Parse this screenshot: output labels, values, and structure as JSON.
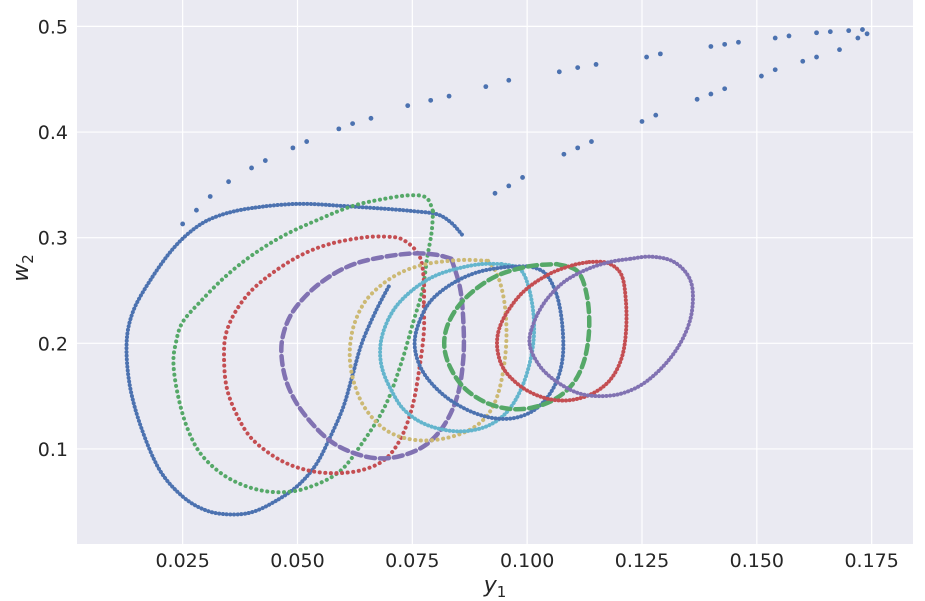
{
  "chart_data": {
    "type": "scatter",
    "title": "",
    "xlabel": "y",
    "xlabel_sub": "1",
    "ylabel": "w",
    "ylabel_sub": "2",
    "xlim": [
      0.002,
      0.184
    ],
    "ylim": [
      0.01,
      0.525
    ],
    "xticks": [
      0.025,
      0.05,
      0.075,
      0.1,
      0.125,
      0.15,
      0.175
    ],
    "xtick_labels": [
      "0.025",
      "0.050",
      "0.075",
      "0.100",
      "0.125",
      "0.150",
      "0.175"
    ],
    "yticks": [
      0.1,
      0.2,
      0.3,
      0.4,
      0.5
    ],
    "ytick_labels": [
      "0.1",
      "0.2",
      "0.3",
      "0.4",
      "0.5"
    ],
    "grid": true,
    "background": "#eaeaf2",
    "series": [
      {
        "color": "#4c72b0",
        "style": "curve",
        "points": [
          [
            0.0858,
            0.303
          ],
          [
            0.0835,
            0.314
          ],
          [
            0.0805,
            0.322
          ],
          [
            0.0755,
            0.325
          ],
          [
            0.07,
            0.327
          ],
          [
            0.06,
            0.33
          ],
          [
            0.05,
            0.332
          ],
          [
            0.04,
            0.328
          ],
          [
            0.033,
            0.321
          ],
          [
            0.028,
            0.31
          ],
          [
            0.023,
            0.29
          ],
          [
            0.018,
            0.26
          ],
          [
            0.0142,
            0.23
          ],
          [
            0.0128,
            0.2
          ],
          [
            0.0135,
            0.16
          ],
          [
            0.016,
            0.12
          ],
          [
            0.02,
            0.08
          ],
          [
            0.025,
            0.055
          ],
          [
            0.03,
            0.042
          ],
          [
            0.035,
            0.038
          ],
          [
            0.04,
            0.04
          ],
          [
            0.045,
            0.05
          ],
          [
            0.05,
            0.065
          ],
          [
            0.054,
            0.085
          ],
          [
            0.057,
            0.11
          ],
          [
            0.06,
            0.14
          ],
          [
            0.062,
            0.17
          ],
          [
            0.064,
            0.2
          ],
          [
            0.067,
            0.23
          ],
          [
            0.07,
            0.255
          ]
        ],
        "scatter_a": [
          [
            0.025,
            0.313
          ],
          [
            0.028,
            0.326
          ],
          [
            0.031,
            0.339
          ],
          [
            0.035,
            0.353
          ],
          [
            0.04,
            0.366
          ],
          [
            0.043,
            0.373
          ],
          [
            0.049,
            0.385
          ],
          [
            0.052,
            0.391
          ],
          [
            0.059,
            0.403
          ],
          [
            0.062,
            0.408
          ],
          [
            0.066,
            0.413
          ],
          [
            0.074,
            0.425
          ],
          [
            0.079,
            0.43
          ],
          [
            0.083,
            0.434
          ],
          [
            0.091,
            0.443
          ],
          [
            0.096,
            0.449
          ],
          [
            0.107,
            0.457
          ],
          [
            0.111,
            0.461
          ],
          [
            0.115,
            0.464
          ],
          [
            0.126,
            0.471
          ],
          [
            0.129,
            0.474
          ],
          [
            0.14,
            0.481
          ],
          [
            0.143,
            0.483
          ],
          [
            0.146,
            0.485
          ],
          [
            0.154,
            0.489
          ],
          [
            0.157,
            0.491
          ],
          [
            0.163,
            0.494
          ],
          [
            0.166,
            0.495
          ],
          [
            0.17,
            0.496
          ],
          [
            0.173,
            0.497
          ],
          [
            0.174,
            0.493
          ],
          [
            0.172,
            0.489
          ],
          [
            0.168,
            0.478
          ],
          [
            0.163,
            0.471
          ],
          [
            0.16,
            0.467
          ],
          [
            0.154,
            0.459
          ],
          [
            0.151,
            0.453
          ],
          [
            0.143,
            0.441
          ],
          [
            0.14,
            0.436
          ],
          [
            0.137,
            0.431
          ],
          [
            0.128,
            0.416
          ],
          [
            0.125,
            0.41
          ],
          [
            0.114,
            0.391
          ],
          [
            0.111,
            0.385
          ],
          [
            0.108,
            0.379
          ],
          [
            0.099,
            0.357
          ],
          [
            0.096,
            0.349
          ],
          [
            0.093,
            0.342
          ]
        ]
      },
      {
        "color": "#55a868",
        "style": "dots",
        "points": [
          [
            0.0795,
            0.325
          ],
          [
            0.0792,
            0.305
          ],
          [
            0.0782,
            0.28
          ],
          [
            0.0772,
            0.25
          ],
          [
            0.0752,
            0.22
          ],
          [
            0.0725,
            0.18
          ],
          [
            0.069,
            0.14
          ],
          [
            0.064,
            0.105
          ],
          [
            0.059,
            0.078
          ],
          [
            0.052,
            0.063
          ],
          [
            0.046,
            0.059
          ],
          [
            0.04,
            0.063
          ],
          [
            0.034,
            0.075
          ],
          [
            0.029,
            0.095
          ],
          [
            0.026,
            0.12
          ],
          [
            0.024,
            0.15
          ],
          [
            0.023,
            0.18
          ],
          [
            0.0235,
            0.2
          ],
          [
            0.025,
            0.22
          ],
          [
            0.029,
            0.24
          ],
          [
            0.034,
            0.262
          ],
          [
            0.04,
            0.283
          ],
          [
            0.047,
            0.302
          ],
          [
            0.055,
            0.318
          ],
          [
            0.062,
            0.33
          ],
          [
            0.068,
            0.336
          ],
          [
            0.074,
            0.34
          ],
          [
            0.078,
            0.338
          ],
          [
            0.0795,
            0.325
          ]
        ]
      },
      {
        "color": "#c44e52",
        "style": "dots",
        "points": [
          [
            0.0775,
            0.235
          ],
          [
            0.0775,
            0.21
          ],
          [
            0.0765,
            0.175
          ],
          [
            0.075,
            0.14
          ],
          [
            0.0725,
            0.11
          ],
          [
            0.069,
            0.09
          ],
          [
            0.064,
            0.08
          ],
          [
            0.058,
            0.077
          ],
          [
            0.052,
            0.08
          ],
          [
            0.046,
            0.09
          ],
          [
            0.04,
            0.11
          ],
          [
            0.0365,
            0.135
          ],
          [
            0.0345,
            0.16
          ],
          [
            0.034,
            0.19
          ],
          [
            0.0345,
            0.21
          ],
          [
            0.0365,
            0.23
          ],
          [
            0.04,
            0.25
          ],
          [
            0.045,
            0.268
          ],
          [
            0.051,
            0.284
          ],
          [
            0.057,
            0.294
          ],
          [
            0.064,
            0.3
          ],
          [
            0.069,
            0.301
          ],
          [
            0.073,
            0.298
          ],
          [
            0.0765,
            0.283
          ],
          [
            0.0775,
            0.26
          ],
          [
            0.0775,
            0.235
          ]
        ]
      },
      {
        "color": "#8172b2",
        "style": "dashed",
        "points": [
          [
            0.0835,
            0.28
          ],
          [
            0.0855,
            0.25
          ],
          [
            0.0862,
            0.21
          ],
          [
            0.086,
            0.18
          ],
          [
            0.0848,
            0.15
          ],
          [
            0.082,
            0.123
          ],
          [
            0.078,
            0.104
          ],
          [
            0.073,
            0.094
          ],
          [
            0.068,
            0.091
          ],
          [
            0.063,
            0.095
          ],
          [
            0.058,
            0.105
          ],
          [
            0.054,
            0.12
          ],
          [
            0.05,
            0.142
          ],
          [
            0.0475,
            0.165
          ],
          [
            0.0465,
            0.19
          ],
          [
            0.047,
            0.21
          ],
          [
            0.049,
            0.23
          ],
          [
            0.053,
            0.25
          ],
          [
            0.058,
            0.266
          ],
          [
            0.063,
            0.276
          ],
          [
            0.069,
            0.282
          ],
          [
            0.075,
            0.285
          ],
          [
            0.08,
            0.284
          ],
          [
            0.0835,
            0.28
          ]
        ]
      },
      {
        "color": "#ccb974",
        "style": "dots",
        "points": [
          [
            0.0915,
            0.278
          ],
          [
            0.0935,
            0.265
          ],
          [
            0.095,
            0.24
          ],
          [
            0.0955,
            0.21
          ],
          [
            0.095,
            0.18
          ],
          [
            0.0935,
            0.15
          ],
          [
            0.091,
            0.13
          ],
          [
            0.087,
            0.117
          ],
          [
            0.082,
            0.11
          ],
          [
            0.077,
            0.108
          ],
          [
            0.072,
            0.112
          ],
          [
            0.068,
            0.122
          ],
          [
            0.0645,
            0.14
          ],
          [
            0.0625,
            0.16
          ],
          [
            0.0615,
            0.18
          ],
          [
            0.0615,
            0.2
          ],
          [
            0.0625,
            0.22
          ],
          [
            0.0648,
            0.24
          ],
          [
            0.0685,
            0.256
          ],
          [
            0.073,
            0.268
          ],
          [
            0.078,
            0.275
          ],
          [
            0.083,
            0.278
          ],
          [
            0.087,
            0.279
          ],
          [
            0.0915,
            0.278
          ]
        ]
      },
      {
        "color": "#64b5cd",
        "style": "curve",
        "points": [
          [
            0.0945,
            0.275
          ],
          [
            0.0985,
            0.27
          ],
          [
            0.1005,
            0.25
          ],
          [
            0.1015,
            0.22
          ],
          [
            0.101,
            0.19
          ],
          [
            0.099,
            0.16
          ],
          [
            0.096,
            0.137
          ],
          [
            0.092,
            0.123
          ],
          [
            0.087,
            0.117
          ],
          [
            0.082,
            0.118
          ],
          [
            0.077,
            0.125
          ],
          [
            0.073,
            0.138
          ],
          [
            0.0705,
            0.155
          ],
          [
            0.0685,
            0.175
          ],
          [
            0.068,
            0.195
          ],
          [
            0.069,
            0.215
          ],
          [
            0.0715,
            0.235
          ],
          [
            0.0755,
            0.252
          ],
          [
            0.08,
            0.264
          ],
          [
            0.085,
            0.271
          ],
          [
            0.09,
            0.275
          ],
          [
            0.0945,
            0.275
          ]
        ]
      },
      {
        "color": "#4c72b0",
        "style": "curve",
        "points": [
          [
            0.1005,
            0.273
          ],
          [
            0.104,
            0.266
          ],
          [
            0.1065,
            0.245
          ],
          [
            0.1077,
            0.215
          ],
          [
            0.1077,
            0.185
          ],
          [
            0.106,
            0.16
          ],
          [
            0.1025,
            0.14
          ],
          [
            0.098,
            0.13
          ],
          [
            0.093,
            0.129
          ],
          [
            0.088,
            0.135
          ],
          [
            0.083,
            0.147
          ],
          [
            0.079,
            0.163
          ],
          [
            0.0765,
            0.18
          ],
          [
            0.0755,
            0.2
          ],
          [
            0.0765,
            0.22
          ],
          [
            0.079,
            0.24
          ],
          [
            0.0835,
            0.256
          ],
          [
            0.089,
            0.267
          ],
          [
            0.095,
            0.272
          ],
          [
            0.1005,
            0.273
          ]
        ]
      },
      {
        "color": "#55a868",
        "style": "dashed",
        "points": [
          [
            0.1065,
            0.275
          ],
          [
            0.111,
            0.268
          ],
          [
            0.113,
            0.245
          ],
          [
            0.1135,
            0.215
          ],
          [
            0.1125,
            0.185
          ],
          [
            0.11,
            0.162
          ],
          [
            0.106,
            0.147
          ],
          [
            0.101,
            0.139
          ],
          [
            0.096,
            0.138
          ],
          [
            0.091,
            0.144
          ],
          [
            0.0865,
            0.157
          ],
          [
            0.0835,
            0.175
          ],
          [
            0.082,
            0.195
          ],
          [
            0.0825,
            0.215
          ],
          [
            0.085,
            0.235
          ],
          [
            0.089,
            0.252
          ],
          [
            0.094,
            0.265
          ],
          [
            0.1005,
            0.273
          ],
          [
            0.1065,
            0.275
          ]
        ]
      },
      {
        "color": "#c44e52",
        "style": "curve",
        "points": [
          [
            0.1135,
            0.277
          ],
          [
            0.1175,
            0.276
          ],
          [
            0.1205,
            0.265
          ],
          [
            0.1215,
            0.24
          ],
          [
            0.1215,
            0.21
          ],
          [
            0.1205,
            0.185
          ],
          [
            0.118,
            0.165
          ],
          [
            0.114,
            0.152
          ],
          [
            0.109,
            0.146
          ],
          [
            0.104,
            0.148
          ],
          [
            0.099,
            0.158
          ],
          [
            0.095,
            0.175
          ],
          [
            0.0935,
            0.195
          ],
          [
            0.094,
            0.215
          ],
          [
            0.0965,
            0.235
          ],
          [
            0.1,
            0.252
          ],
          [
            0.105,
            0.266
          ],
          [
            0.11,
            0.274
          ],
          [
            0.1135,
            0.277
          ]
        ]
      },
      {
        "color": "#8172b2",
        "style": "curve",
        "points": [
          [
            0.1225,
            0.28
          ],
          [
            0.127,
            0.282
          ],
          [
            0.132,
            0.277
          ],
          [
            0.1355,
            0.26
          ],
          [
            0.136,
            0.235
          ],
          [
            0.1345,
            0.21
          ],
          [
            0.131,
            0.185
          ],
          [
            0.126,
            0.164
          ],
          [
            0.121,
            0.153
          ],
          [
            0.116,
            0.15
          ],
          [
            0.111,
            0.153
          ],
          [
            0.106,
            0.165
          ],
          [
            0.1025,
            0.18
          ],
          [
            0.1005,
            0.2
          ],
          [
            0.1015,
            0.22
          ],
          [
            0.104,
            0.24
          ],
          [
            0.108,
            0.258
          ],
          [
            0.113,
            0.27
          ],
          [
            0.118,
            0.277
          ],
          [
            0.1225,
            0.28
          ]
        ]
      }
    ]
  }
}
